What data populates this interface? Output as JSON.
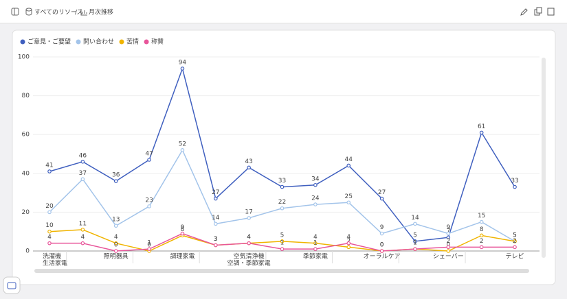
{
  "header": {
    "breadcrumb": [
      "すべてのリソース",
      "/",
      "月次推移"
    ]
  },
  "chart_data": {
    "type": "line",
    "categories": [
      [
        "洗濯機",
        "生活家電"
      ],
      null,
      "照明器具",
      null,
      "調理家電",
      null,
      [
        "空気清浄機",
        "空調・季節家電"
      ],
      null,
      "季節家電",
      null,
      "オーラルケア",
      null,
      "シェーバー",
      null,
      "テレビ"
    ],
    "series": [
      {
        "name": "ご意見・ご要望",
        "color": "#3f5fbf",
        "values": [
          41,
          46,
          36,
          47,
          94,
          27,
          43,
          33,
          34,
          44,
          27,
          5,
          7,
          61,
          33
        ]
      },
      {
        "name": "問い合わせ",
        "color": "#a3c4ea",
        "values": [
          20,
          37,
          13,
          23,
          52,
          14,
          17,
          22,
          24,
          25,
          9,
          14,
          9,
          15,
          5
        ]
      },
      {
        "name": "苦情",
        "color": "#f0b400",
        "values": [
          10,
          11,
          4,
          0,
          8,
          3,
          4,
          5,
          4,
          2,
          0,
          1,
          0,
          8,
          5
        ]
      },
      {
        "name": "称賛",
        "color": "#e8559a",
        "values": [
          4,
          4,
          0,
          1,
          9,
          3,
          4,
          1,
          1,
          4,
          0,
          1,
          2,
          2,
          2
        ]
      }
    ],
    "ylim": [
      0,
      100
    ],
    "yticks": [
      0,
      20,
      40,
      60,
      80,
      100
    ],
    "grid": true,
    "legend": "top-left"
  }
}
